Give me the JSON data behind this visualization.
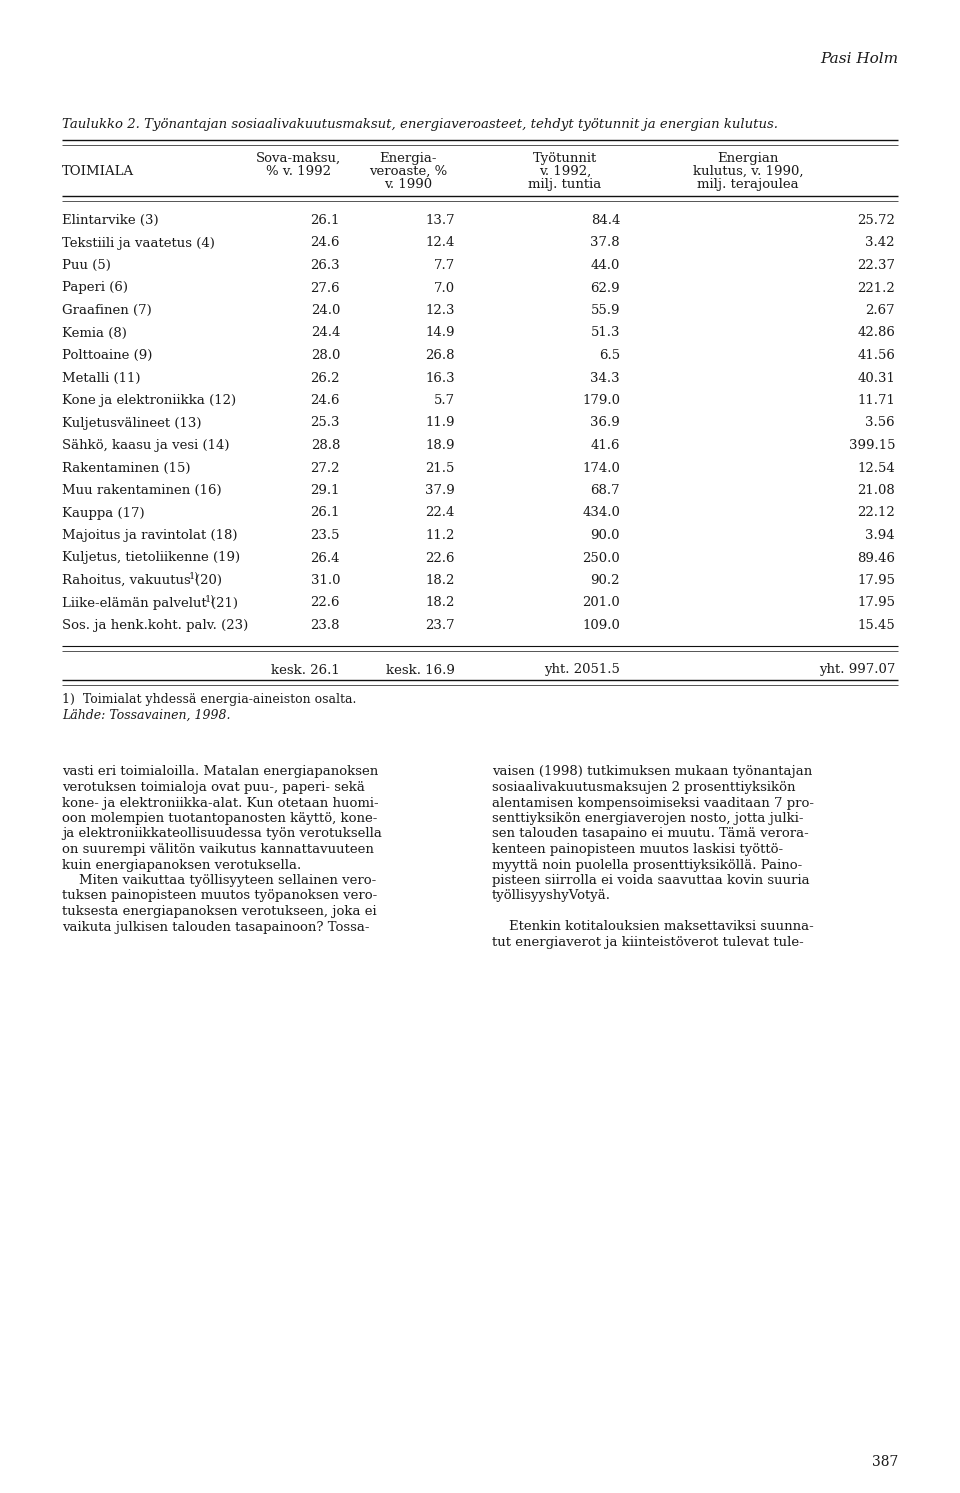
{
  "page_header": "Pasi Holm",
  "table_title": "Taulukko 2. Työnantajan sosiaalivakuutusmaksut, energiaveroasteet, tehdyt työtunnit ja energian kulutus.",
  "col_headers_row1": [
    "TOIMIALA",
    "Sova-maksu,",
    "Energia-",
    "Työtunnit",
    "Energian"
  ],
  "col_headers_row2": [
    "",
    "% v. 1992",
    "veroaste, %",
    "v. 1992,",
    "kulutus, v. 1990,"
  ],
  "col_headers_row3": [
    "",
    "",
    "v. 1990",
    "milj. tuntia",
    "milj. terajoulea"
  ],
  "rows": [
    [
      "Elintarvike (3)",
      "26.1",
      "13.7",
      "84.4",
      "25.72"
    ],
    [
      "Tekstiili ja vaatetus (4)",
      "24.6",
      "12.4",
      "37.8",
      "3.42"
    ],
    [
      "Puu (5)",
      "26.3",
      "7.7",
      "44.0",
      "22.37"
    ],
    [
      "Paperi (6)",
      "27.6",
      "7.0",
      "62.9",
      "221.2"
    ],
    [
      "Graafinen (7)",
      "24.0",
      "12.3",
      "55.9",
      "2.67"
    ],
    [
      "Kemia (8)",
      "24.4",
      "14.9",
      "51.3",
      "42.86"
    ],
    [
      "Polttoaine (9)",
      "28.0",
      "26.8",
      "6.5",
      "41.56"
    ],
    [
      "Metalli (11)",
      "26.2",
      "16.3",
      "34.3",
      "40.31"
    ],
    [
      "Kone ja elektroniikka (12)",
      "24.6",
      "5.7",
      "179.0",
      "11.71"
    ],
    [
      "Kuljetusvälineet (13)",
      "25.3",
      "11.9",
      "36.9",
      "3.56"
    ],
    [
      "Sähkö, kaasu ja vesi (14)",
      "28.8",
      "18.9",
      "41.6",
      "399.15"
    ],
    [
      "Rakentaminen (15)",
      "27.2",
      "21.5",
      "174.0",
      "12.54"
    ],
    [
      "Muu rakentaminen (16)",
      "29.1",
      "37.9",
      "68.7",
      "21.08"
    ],
    [
      "Kauppa (17)",
      "26.1",
      "22.4",
      "434.0",
      "22.12"
    ],
    [
      "Majoitus ja ravintolat (18)",
      "23.5",
      "11.2",
      "90.0",
      "3.94"
    ],
    [
      "Kuljetus, tietoliikenne (19)",
      "26.4",
      "22.6",
      "250.0",
      "89.46"
    ],
    [
      "Rahoitus, vakuutus (20)¹⧩",
      "31.0",
      "18.2",
      "90.2",
      "17.95"
    ],
    [
      "Liike-elämän palvelut (21)¹⧩",
      "22.6",
      "18.2",
      "201.0",
      "17.95"
    ],
    [
      "Sos. ja henk.koht. palv. (23)",
      "23.8",
      "23.7",
      "109.0",
      "15.45"
    ]
  ],
  "footer_row": [
    "",
    "kesk. 26.1",
    "kesk. 16.9",
    "yht. 2051.5",
    "yht. 997.07"
  ],
  "footnote1": "1)  Toimialat yhdessä energia-aineiston osalta.",
  "footnote2": "Lähde: Tossavainen, 1998.",
  "body_left_lines": [
    "vasti eri toimialoilla. Matalan energiapanoksen",
    "verotuksen toimialoja ovat puu-, paperi- sekä",
    "kone- ja elektroniikka-alat. Kun otetaan huomi-",
    "oon molempien tuotantopanosten käyttö, kone-",
    "ja elektroniikkateollisuudessa työn verotuksella",
    "on suurempi välitön vaikutus kannattavuuteen",
    "kuin energiapanoksen verotuksella.",
    "    Miten vaikuttaa työllisyyteen sellainen vero-",
    "tuksen painopisteen muutos työpanoksen vero-",
    "tuksesta energiapanoksen verotukseen, joka ei",
    "vaikuta julkisen talouden tasapainoon? Tossa-"
  ],
  "body_right_lines": [
    "vaisen (1998) tutkimuksen mukaan työnantajan",
    "sosiaalivakuutusmaksujen 2 prosenttiyksikön",
    "alentamisen kompensoimiseksi vaaditaan 7 pro-",
    "senttiyksikön energiaverojen nosto, jotta julki-",
    "sen talouden tasapaino ei muutu. Tämä verora-",
    "kenteen painopisteen muutos laskisi työttö-",
    "myyttä noin puolella prosenttiyksiköllä. Paino-",
    "pisteen siirrolla ei voida saavuttaa kovin suuria",
    "työllisyyshyVotyä.",
    "",
    "    Etenkin kotitalouksien maksettaviksi suunna-",
    "tut energiaverot ja kiinteistöverot tulevat tule-"
  ],
  "page_number": "387",
  "bg_color": "#ffffff",
  "text_color": "#1a1a1a"
}
